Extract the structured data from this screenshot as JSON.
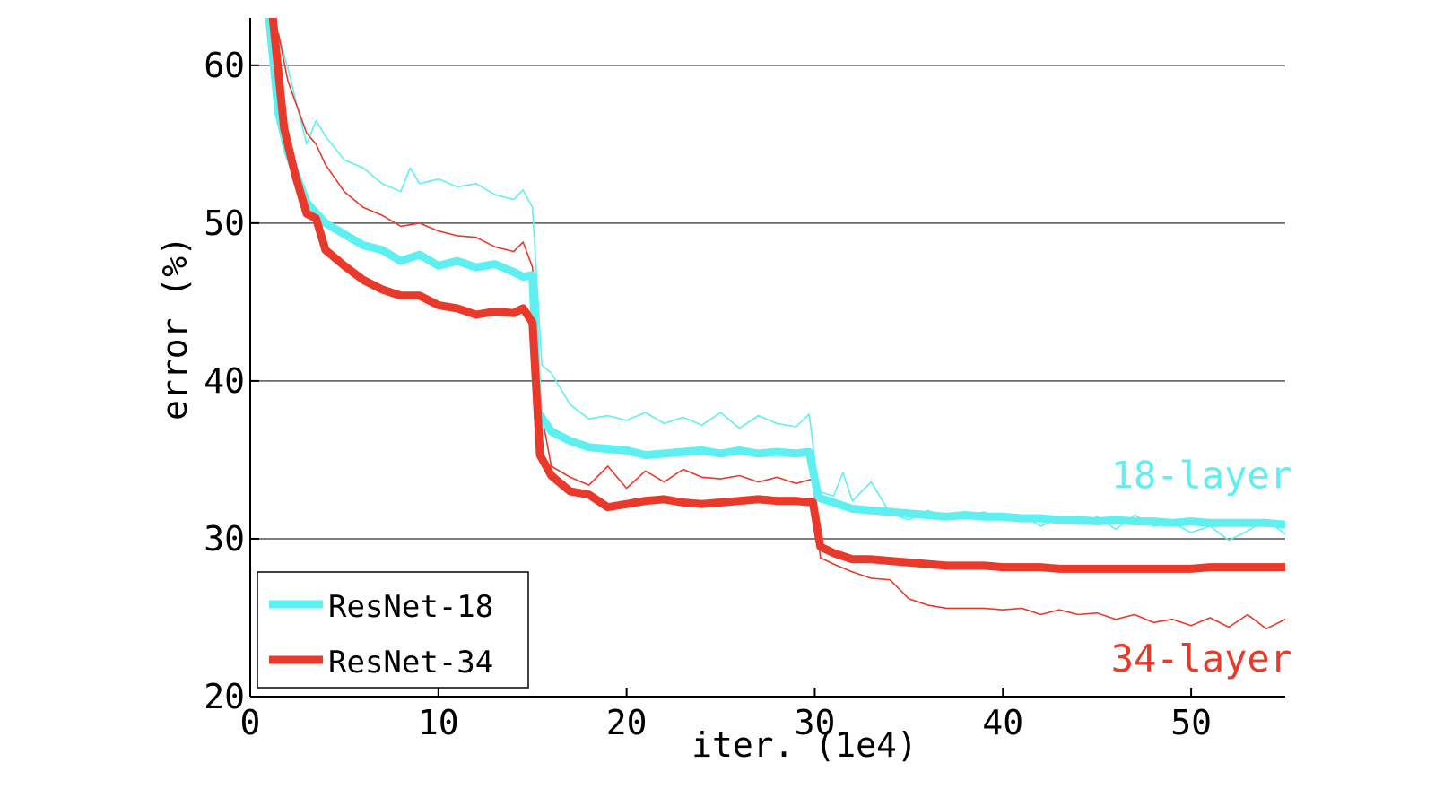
{
  "chart_data": {
    "type": "line",
    "xlabel": "iter. (1e4)",
    "ylabel": "error (%)",
    "xlim": [
      0,
      55
    ],
    "ylim": [
      20,
      63
    ],
    "xticks": [
      0,
      10,
      20,
      30,
      40,
      50
    ],
    "yticks": [
      20,
      30,
      40,
      50,
      60
    ],
    "grid": "horizontal",
    "legend_position": "bottom-left",
    "annotations": [
      {
        "name": "label-18-layer",
        "text": "18-layer",
        "x": 55,
        "y": 33.2,
        "color": "#5ef0f0"
      },
      {
        "name": "label-34-layer",
        "text": "34-layer",
        "x": 55,
        "y": 21.6,
        "color": "#e8392b"
      }
    ],
    "series": [
      {
        "name": "ResNet-18",
        "role": "val",
        "color": "#5ef0f0",
        "x": [
          1,
          1.5,
          2,
          3,
          4,
          5,
          6,
          7,
          8,
          9,
          10,
          11,
          12,
          13,
          14,
          14.5,
          15,
          15.3,
          16,
          17,
          18,
          19,
          20,
          21,
          22,
          23,
          24,
          25,
          26,
          27,
          28,
          29,
          29.7,
          30.2,
          31,
          32,
          33,
          34,
          35,
          36,
          37,
          38,
          39,
          40,
          41,
          42,
          43,
          44,
          45,
          46,
          47,
          48,
          49,
          50,
          51,
          52,
          53,
          54,
          55
        ],
        "y": [
          63,
          57,
          54.5,
          51.3,
          50,
          49.3,
          48.6,
          48.3,
          47.6,
          48,
          47.3,
          47.6,
          47.2,
          47.4,
          46.9,
          46.6,
          46.7,
          38,
          36.8,
          36.2,
          35.8,
          35.7,
          35.6,
          35.3,
          35.4,
          35.5,
          35.6,
          35.4,
          35.6,
          35.4,
          35.5,
          35.4,
          35.5,
          32.6,
          32.3,
          31.9,
          31.8,
          31.7,
          31.6,
          31.5,
          31.4,
          31.5,
          31.4,
          31.4,
          31.3,
          31.3,
          31.2,
          31.2,
          31.1,
          31.2,
          31.1,
          31.1,
          31,
          31.1,
          31,
          31,
          31,
          31,
          30.9
        ]
      },
      {
        "name": "ResNet-34",
        "role": "val",
        "color": "#e8392b",
        "x": [
          1.2,
          1.8,
          2.4,
          3,
          3.5,
          4,
          5,
          6,
          7,
          8,
          9,
          10,
          11,
          12,
          13,
          14,
          14.5,
          15,
          15.4,
          16,
          17,
          18,
          19,
          20,
          21,
          22,
          23,
          24,
          25,
          26,
          27,
          28,
          29,
          29.9,
          30.3,
          31,
          32,
          33,
          34,
          35,
          36,
          37,
          38,
          39,
          40,
          41,
          42,
          43,
          44,
          45,
          46,
          47,
          48,
          49,
          50,
          51,
          52,
          53,
          54,
          55
        ],
        "y": [
          63,
          56,
          53,
          50.6,
          50.3,
          48.3,
          47.3,
          46.4,
          45.8,
          45.4,
          45.4,
          44.8,
          44.6,
          44.2,
          44.4,
          44.3,
          44.6,
          43.7,
          35.3,
          34,
          33,
          32.8,
          32,
          32.2,
          32.4,
          32.5,
          32.3,
          32.2,
          32.3,
          32.4,
          32.5,
          32.4,
          32.4,
          32.3,
          29.5,
          29.1,
          28.7,
          28.7,
          28.6,
          28.5,
          28.4,
          28.3,
          28.3,
          28.3,
          28.2,
          28.2,
          28.2,
          28.1,
          28.1,
          28.1,
          28.1,
          28.1,
          28.1,
          28.1,
          28.1,
          28.2,
          28.2,
          28.2,
          28.2,
          28.2
        ]
      },
      {
        "name": "",
        "role": "train",
        "color": "#5ef0f0",
        "x": [
          1.5,
          2,
          3,
          3.5,
          4,
          5,
          6,
          7,
          8,
          8.5,
          9,
          10,
          11,
          12,
          13,
          14,
          14.5,
          15,
          15.5,
          16,
          17,
          18,
          19,
          20,
          21,
          22,
          23,
          24,
          25,
          26,
          27,
          28,
          29,
          29.7,
          30.2,
          31,
          31.5,
          32,
          33,
          34,
          35,
          36,
          37,
          38,
          39,
          40,
          41,
          42,
          43,
          44,
          45,
          46,
          47,
          48,
          49,
          50,
          51,
          52,
          53,
          54,
          55
        ],
        "y": [
          62,
          59.8,
          55,
          56.5,
          55.5,
          54,
          53.5,
          52.5,
          52,
          53.5,
          52.5,
          52.8,
          52.3,
          52.5,
          51.8,
          51.5,
          52.1,
          51,
          41,
          40.5,
          38.5,
          37.6,
          37.8,
          37.5,
          38,
          37.3,
          37.7,
          37.2,
          38,
          37,
          37.8,
          37.3,
          37.1,
          37.9,
          33,
          32.7,
          34.2,
          32.4,
          33.6,
          31.6,
          31.2,
          31.8,
          31.4,
          31.5,
          31.7,
          31.2,
          31.5,
          30.8,
          31.3,
          30.9,
          31.4,
          30.6,
          31.5,
          30.8,
          31,
          30.4,
          30.8,
          29.9,
          30.5,
          31.2,
          30.3
        ]
      },
      {
        "name": "",
        "role": "train",
        "color": "#e8392b",
        "x": [
          1.5,
          2,
          3,
          3.5,
          4,
          5,
          6,
          7,
          8,
          9,
          10,
          11,
          12,
          13,
          14,
          14.5,
          15,
          15.5,
          16,
          17,
          18,
          19,
          20,
          21,
          22,
          23,
          24,
          25,
          26,
          27,
          28,
          29,
          29.9,
          30.3,
          31,
          32,
          33,
          34,
          35,
          36,
          37,
          38,
          39,
          40,
          41,
          42,
          43,
          44,
          45,
          46,
          47,
          48,
          49,
          50,
          51,
          52,
          53,
          54,
          55
        ],
        "y": [
          62,
          59,
          55.7,
          55,
          53.7,
          52,
          51,
          50.5,
          49.8,
          50,
          49.5,
          49.2,
          49.1,
          48.5,
          48.2,
          48.8,
          47.2,
          37.8,
          34.6,
          33.9,
          33.4,
          34.6,
          33.2,
          34.3,
          33.6,
          34.4,
          33.9,
          33.8,
          34,
          33.6,
          33.9,
          33.5,
          33.8,
          28.8,
          28.4,
          27.9,
          27.5,
          27.4,
          26.2,
          25.8,
          25.6,
          25.6,
          25.6,
          25.5,
          25.6,
          25.2,
          25.5,
          25.2,
          25.3,
          24.9,
          25.2,
          24.7,
          24.9,
          24.5,
          25,
          24.4,
          25.2,
          24.3,
          24.9
        ]
      }
    ]
  }
}
